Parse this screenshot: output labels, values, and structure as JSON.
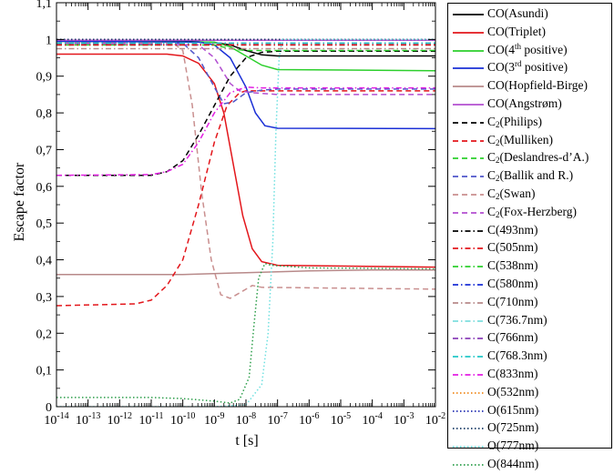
{
  "chart_data": {
    "type": "line",
    "xlabel": "t [s]",
    "ylabel": "Escape factor",
    "xscale": "log",
    "xlim": [
      1e-14,
      0.01
    ],
    "ylim": [
      0,
      1.1
    ],
    "x_ticks": [
      {
        "base": "10",
        "exp": "-14"
      },
      {
        "base": "10",
        "exp": "-13"
      },
      {
        "base": "10",
        "exp": "-12"
      },
      {
        "base": "10",
        "exp": "-11"
      },
      {
        "base": "10",
        "exp": "-10"
      },
      {
        "base": "10",
        "exp": "-9"
      },
      {
        "base": "10",
        "exp": "-8"
      },
      {
        "base": "10",
        "exp": "-7"
      },
      {
        "base": "10",
        "exp": "-6"
      },
      {
        "base": "10",
        "exp": "-5"
      },
      {
        "base": "10",
        "exp": "-4"
      },
      {
        "base": "10",
        "exp": "-3"
      },
      {
        "base": "10",
        "exp": "-2"
      }
    ],
    "y_ticks": [
      "0",
      "0,1",
      "0,2",
      "0,3",
      "0,4",
      "0,5",
      "0,6",
      "0,7",
      "0,8",
      "0,9",
      "1",
      "1,1"
    ],
    "legend_position": "right, outside plot",
    "grid": false,
    "series": [
      {
        "name_main": "CO(Asundi)",
        "color": "#000000",
        "dash": "solid",
        "points": [
          [
            -14,
            0.995
          ],
          [
            -10,
            0.995
          ],
          [
            -9,
            0.992
          ],
          [
            -8.5,
            0.985
          ],
          [
            -8,
            0.97
          ],
          [
            -7.5,
            0.958
          ],
          [
            -7,
            0.955
          ],
          [
            -2,
            0.955
          ]
        ]
      },
      {
        "name_main": "CO(Triplet)",
        "color": "#e3161b",
        "dash": "solid",
        "points": [
          [
            -14,
            0.96
          ],
          [
            -10.5,
            0.96
          ],
          [
            -10,
            0.955
          ],
          [
            -9.5,
            0.935
          ],
          [
            -9,
            0.88
          ],
          [
            -8.7,
            0.8
          ],
          [
            -8.4,
            0.66
          ],
          [
            -8.1,
            0.52
          ],
          [
            -7.8,
            0.43
          ],
          [
            -7.5,
            0.395
          ],
          [
            -7,
            0.385
          ],
          [
            -2,
            0.38
          ]
        ]
      },
      {
        "name_main": "CO(4",
        "name_sup": "th",
        "name_tail": " positive)",
        "color": "#2ccf2c",
        "dash": "solid",
        "points": [
          [
            -14,
            0.995
          ],
          [
            -9,
            0.993
          ],
          [
            -8.5,
            0.98
          ],
          [
            -8,
            0.955
          ],
          [
            -7.5,
            0.93
          ],
          [
            -7,
            0.918
          ],
          [
            -2,
            0.915
          ]
        ]
      },
      {
        "name_main": "CO(3",
        "name_sup": "rd",
        "name_tail": " positive)",
        "color": "#1a2fd6",
        "dash": "solid",
        "points": [
          [
            -14,
            0.995
          ],
          [
            -9.5,
            0.993
          ],
          [
            -9,
            0.985
          ],
          [
            -8.5,
            0.95
          ],
          [
            -8,
            0.87
          ],
          [
            -7.7,
            0.8
          ],
          [
            -7.4,
            0.765
          ],
          [
            -7,
            0.758
          ],
          [
            -2,
            0.757
          ]
        ]
      },
      {
        "name_main": "CO(Hopfield-Birge)",
        "color": "#b88a8a",
        "dash": "solid",
        "points": [
          [
            -14,
            0.36
          ],
          [
            -10,
            0.36
          ],
          [
            -8,
            0.365
          ],
          [
            -6,
            0.37
          ],
          [
            -4,
            0.372
          ],
          [
            -2,
            0.372
          ]
        ]
      },
      {
        "name_main": "CO(Angstrøm)",
        "color": "#b24fd1",
        "dash": "solid",
        "points": [
          [
            -14,
            0.998
          ],
          [
            -2,
            0.998
          ]
        ]
      },
      {
        "name_main": "C",
        "name_sub": "2",
        "name_tail": "(Philips)",
        "color": "#000000",
        "dash": "dashed",
        "points": [
          [
            -14,
            0.63
          ],
          [
            -11,
            0.63
          ],
          [
            -10.5,
            0.64
          ],
          [
            -10,
            0.67
          ],
          [
            -9.5,
            0.74
          ],
          [
            -9,
            0.82
          ],
          [
            -8.5,
            0.9
          ],
          [
            -8,
            0.95
          ],
          [
            -7.5,
            0.965
          ],
          [
            -7,
            0.968
          ],
          [
            -2,
            0.968
          ]
        ]
      },
      {
        "name_main": "C",
        "name_sub": "2",
        "name_tail": "(Mulliken)",
        "color": "#e3161b",
        "dash": "dashed",
        "points": [
          [
            -14,
            0.275
          ],
          [
            -11.5,
            0.28
          ],
          [
            -11,
            0.29
          ],
          [
            -10.5,
            0.33
          ],
          [
            -10,
            0.4
          ],
          [
            -9.5,
            0.55
          ],
          [
            -9,
            0.72
          ],
          [
            -8.6,
            0.82
          ],
          [
            -8.2,
            0.855
          ],
          [
            -8,
            0.86
          ],
          [
            -2,
            0.86
          ]
        ]
      },
      {
        "name_main": "C",
        "name_sub": "2",
        "name_tail": "(Deslandres-d’A.)",
        "color": "#2ccf2c",
        "dash": "dashed",
        "points": [
          [
            -14,
            0.985
          ],
          [
            -9,
            0.985
          ],
          [
            -8.5,
            0.975
          ],
          [
            -8,
            0.97
          ],
          [
            -2,
            0.97
          ]
        ]
      },
      {
        "name_main": "C",
        "name_sub": "2",
        "name_tail": "(Ballik and R.)",
        "color": "#4f55c9",
        "dash": "dashed",
        "points": [
          [
            -14,
            0.99
          ],
          [
            -10,
            0.99
          ],
          [
            -9.5,
            0.95
          ],
          [
            -9,
            0.87
          ],
          [
            -8.7,
            0.825
          ],
          [
            -8.4,
            0.83
          ],
          [
            -8,
            0.855
          ],
          [
            -7.5,
            0.862
          ],
          [
            -7,
            0.865
          ],
          [
            -2,
            0.865
          ]
        ]
      },
      {
        "name_main": "C",
        "name_sub": "2",
        "name_tail": "(Swan)",
        "color": "#c98f8f",
        "dash": "dashed",
        "points": [
          [
            -14,
            0.99
          ],
          [
            -10.3,
            0.99
          ],
          [
            -10,
            0.97
          ],
          [
            -9.7,
            0.82
          ],
          [
            -9.4,
            0.58
          ],
          [
            -9.1,
            0.4
          ],
          [
            -8.8,
            0.305
          ],
          [
            -8.5,
            0.295
          ],
          [
            -8.2,
            0.31
          ],
          [
            -7.8,
            0.33
          ],
          [
            -7.5,
            0.325
          ],
          [
            -2,
            0.32
          ]
        ]
      },
      {
        "name_main": "C",
        "name_sub": "2",
        "name_tail": "(Fox-Herzberg)",
        "color": "#b24fd1",
        "dash": "dashed",
        "points": [
          [
            -14,
            0.99
          ],
          [
            -9.5,
            0.985
          ],
          [
            -9,
            0.95
          ],
          [
            -8.5,
            0.88
          ],
          [
            -8.2,
            0.86
          ],
          [
            -7.8,
            0.855
          ],
          [
            -7,
            0.85
          ],
          [
            -2,
            0.85
          ]
        ]
      },
      {
        "name_main": "C(493nm)",
        "color": "#000000",
        "dash": "dashdot",
        "points": [
          [
            -14,
            0.985
          ],
          [
            -2,
            0.985
          ]
        ]
      },
      {
        "name_main": "C(505nm)",
        "color": "#e3161b",
        "dash": "dashdot",
        "points": [
          [
            -14,
            0.985
          ],
          [
            -2,
            0.985
          ]
        ]
      },
      {
        "name_main": "C(538nm)",
        "color": "#2ccf2c",
        "dash": "dashdot",
        "points": [
          [
            -14,
            0.99
          ],
          [
            -2,
            0.99
          ]
        ]
      },
      {
        "name_main": "C(580nm)",
        "color": "#1a2fd6",
        "dash": "dashdot",
        "points": [
          [
            -14,
            0.99
          ],
          [
            -2,
            0.99
          ]
        ]
      },
      {
        "name_main": "C(710nm)",
        "color": "#b88a8a",
        "dash": "dashdot",
        "points": [
          [
            -14,
            0.975
          ],
          [
            -2,
            0.975
          ]
        ]
      },
      {
        "name_main": "C(736.7nm)",
        "color": "#7fdede",
        "dash": "dashdot",
        "points": [
          [
            -14,
            0.99
          ],
          [
            -2,
            0.99
          ]
        ]
      },
      {
        "name_main": "C(766nm)",
        "color": "#8a3fb8",
        "dash": "dashdot",
        "points": [
          [
            -14,
            0.99
          ],
          [
            -2,
            0.99
          ]
        ]
      },
      {
        "name_main": "C(768.3nm)",
        "color": "#22c7c7",
        "dash": "dashdot",
        "points": [
          [
            -14,
            0.99
          ],
          [
            -2,
            0.99
          ]
        ]
      },
      {
        "name_main": "C(833nm)",
        "color": "#e21fe2",
        "dash": "dashdot",
        "points": [
          [
            -14,
            0.63
          ],
          [
            -11,
            0.632
          ],
          [
            -10.5,
            0.64
          ],
          [
            -10,
            0.66
          ],
          [
            -9.5,
            0.72
          ],
          [
            -9,
            0.8
          ],
          [
            -8.5,
            0.855
          ],
          [
            -8,
            0.87
          ],
          [
            -7.5,
            0.868
          ],
          [
            -2,
            0.868
          ]
        ]
      },
      {
        "name_main": "O(532nm)",
        "color": "#f08a1e",
        "dash": "dotted",
        "points": [
          [
            -14,
            1.0
          ],
          [
            -2,
            1.0
          ]
        ]
      },
      {
        "name_main": "O(615nm)",
        "color": "#2431b3",
        "dash": "dotted",
        "points": [
          [
            -14,
            1.0
          ],
          [
            -2,
            1.0
          ]
        ]
      },
      {
        "name_main": "O(725nm)",
        "color": "#1a3b66",
        "dash": "dotted",
        "points": [
          [
            -14,
            1.0
          ],
          [
            -2,
            1.0
          ]
        ]
      },
      {
        "name_main": "O(777nm)",
        "color": "#6ee0e0",
        "dash": "dotted",
        "points": [
          [
            -14,
            0.0
          ],
          [
            -9,
            0.0
          ],
          [
            -8,
            0.005
          ],
          [
            -7.5,
            0.06
          ],
          [
            -7.3,
            0.2
          ],
          [
            -7.15,
            0.45
          ],
          [
            -7.05,
            0.75
          ],
          [
            -6.95,
            0.95
          ],
          [
            -6.85,
            1.0
          ],
          [
            -2,
            1.0
          ]
        ]
      },
      {
        "name_main": "O(844nm)",
        "color": "#2c9e4a",
        "dash": "dotted",
        "points": [
          [
            -14,
            0.025
          ],
          [
            -11,
            0.025
          ],
          [
            -10,
            0.022
          ],
          [
            -9,
            0.015
          ],
          [
            -8.5,
            0.01
          ],
          [
            -8.2,
            0.02
          ],
          [
            -7.9,
            0.08
          ],
          [
            -7.75,
            0.22
          ],
          [
            -7.6,
            0.35
          ],
          [
            -7.4,
            0.39
          ],
          [
            -7.2,
            0.385
          ],
          [
            -6,
            0.378
          ],
          [
            -2,
            0.375
          ]
        ]
      }
    ]
  }
}
